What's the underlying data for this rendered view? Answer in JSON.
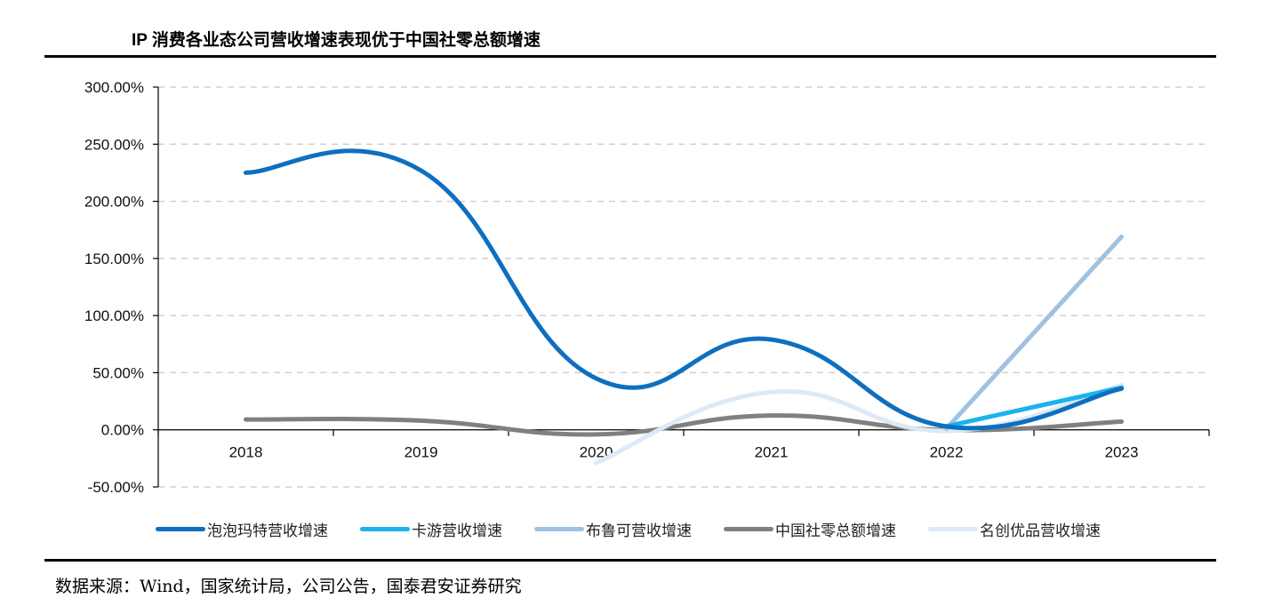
{
  "header": {
    "title": "IP 消费各业态公司营收增速表现优于中国社零总额增速"
  },
  "footer": {
    "source": "数据来源：Wind，国家统计局，公司公告，国泰君安证券研究"
  },
  "chart_data": {
    "type": "line",
    "title": "IP 消费各业态公司营收增速表现优于中国社零总额增速",
    "xlabel": "",
    "ylabel": "",
    "categories": [
      "2018",
      "2019",
      "2020",
      "2021",
      "2022",
      "2023"
    ],
    "ylim": [
      -50,
      300
    ],
    "yticks": [
      "300.00%",
      "250.00%",
      "200.00%",
      "150.00%",
      "100.00%",
      "50.00%",
      "0.00%",
      "-50.00%"
    ],
    "ytick_values": [
      300,
      250,
      200,
      150,
      100,
      50,
      0,
      -50
    ],
    "grid": "dashed horizontal",
    "legend_position": "bottom",
    "series": [
      {
        "name": "泡泡玛特营收增速",
        "color": "#0e6fc0",
        "values": [
          225,
          227,
          45,
          79,
          3,
          36
        ]
      },
      {
        "name": "卡游营收增速",
        "color": "#1ab3ee",
        "values": [
          null,
          null,
          null,
          null,
          3,
          37
        ]
      },
      {
        "name": "布鲁可营收增速",
        "color": "#9fc2e2",
        "values": [
          null,
          null,
          null,
          null,
          1,
          169
        ]
      },
      {
        "name": "中国社零总额增速",
        "color": "#808080",
        "values": [
          9,
          8,
          -4,
          12.5,
          -0.2,
          7.2
        ]
      },
      {
        "name": "名创优品营收增速",
        "color": "#dde9f6",
        "values": [
          null,
          null,
          -29,
          33,
          -1,
          39
        ]
      }
    ]
  }
}
